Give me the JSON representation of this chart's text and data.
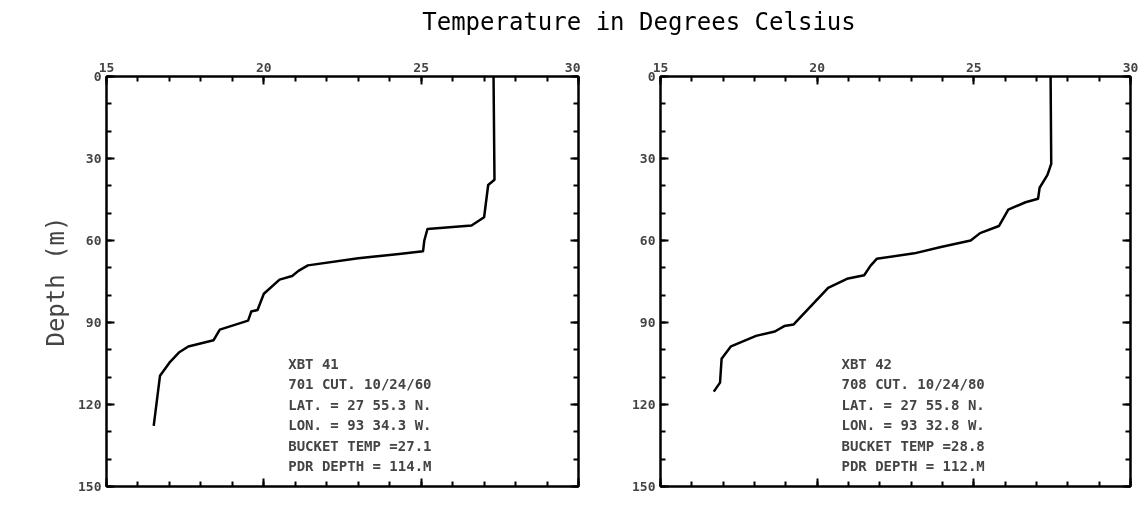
{
  "chart_data": [
    {
      "type": "line",
      "title": "Temperature in Degrees Celsius",
      "ylabel": "Depth (m)",
      "xlim": [
        15,
        30
      ],
      "xticks": [
        15,
        20,
        25,
        30
      ],
      "ylim": [
        150,
        0
      ],
      "yticks": [
        0,
        30,
        60,
        90,
        120,
        150
      ],
      "series": [
        {
          "color": "#000000",
          "x": [
            27.3,
            27.33,
            27.13,
            27.0,
            26.6,
            25.2,
            25.1,
            25.06,
            24.3,
            23.0,
            21.4,
            21.1,
            20.9,
            20.5,
            20.0,
            19.8,
            19.6,
            19.5,
            18.6,
            18.4,
            17.6,
            17.3,
            17.0,
            16.7,
            16.5
          ],
          "values": [
            0,
            37.8,
            39.7,
            51.5,
            54.5,
            55.8,
            60,
            63.9,
            64.9,
            66.5,
            69.1,
            71.1,
            73,
            74.3,
            79.5,
            85.4,
            86,
            89.3,
            92.6,
            96.5,
            98.8,
            101,
            104.7,
            109.5,
            127.8
          ]
        }
      ],
      "annotations": [
        "XBT   41",
        " 701 CUT. 10/24/60",
        "LAT. = 27 55.3 N.",
        "LON. = 93 34.3 W.",
        "BUCKET TEMP =27.1",
        "PDR DEPTH = 114.M"
      ]
    },
    {
      "type": "line",
      "xlim": [
        15,
        30
      ],
      "xticks": [
        15,
        20,
        25,
        30
      ],
      "ylim": [
        150,
        0
      ],
      "yticks": [
        0,
        30,
        60,
        90,
        120,
        150
      ],
      "series": [
        {
          "color": "#000000",
          "x": [
            27.45,
            27.47,
            27.35,
            27.1,
            27.05,
            26.65,
            26.1,
            25.8,
            25.2,
            24.9,
            23.95,
            23.1,
            21.9,
            21.7,
            21.5,
            20.95,
            20.35,
            19.8,
            19.25,
            18.95,
            18.65,
            18.05,
            17.25,
            16.95,
            16.9,
            16.7
          ],
          "values": [
            0,
            32,
            36,
            40.7,
            44.7,
            46,
            48.7,
            54.7,
            57.3,
            60,
            62.4,
            64.7,
            66.7,
            69.3,
            72.7,
            74,
            77.3,
            84,
            90.7,
            91.3,
            93.3,
            94.9,
            98.7,
            103.3,
            112,
            115.3
          ]
        }
      ],
      "annotations": [
        "XBT   42",
        " 708 CUT. 10/24/80",
        "LAT. = 27 55.8 N.",
        "LON. = 93 32.8 W.",
        "BUCKET TEMP =28.8",
        "PDR DEPTH = 112.M"
      ]
    }
  ]
}
